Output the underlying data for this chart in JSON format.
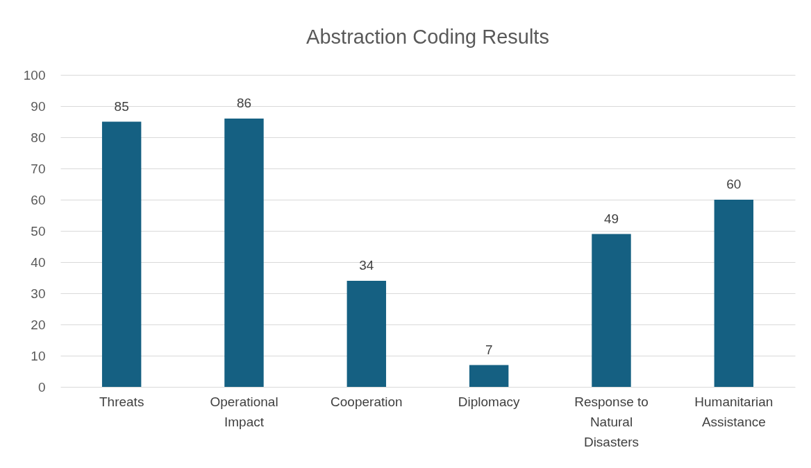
{
  "chart_data": {
    "type": "bar",
    "title": "Abstraction Coding Results",
    "categories": [
      "Threats",
      "Operational Impact",
      "Cooperation",
      "Diplomacy",
      "Response to Natural Disasters",
      "Humanitarian Assistance"
    ],
    "values": [
      85,
      86,
      34,
      7,
      49,
      60
    ],
    "color": "#156082",
    "ylim": [
      0,
      100
    ],
    "yticks": [
      0,
      10,
      20,
      30,
      40,
      50,
      60,
      70,
      80,
      90,
      100
    ],
    "grid": "y",
    "data_labels": true
  }
}
